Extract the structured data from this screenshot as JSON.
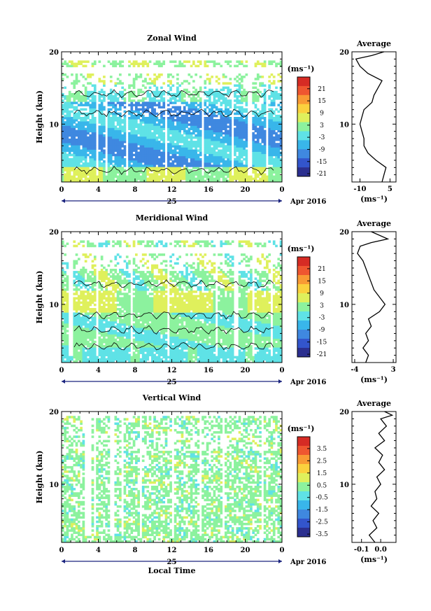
{
  "chart_data": [
    {
      "type": "heatmap",
      "title": "Zonal Wind",
      "ylabel": "Height (km)",
      "y_ticks": [
        "10",
        "20"
      ],
      "x_ticks": [
        "0",
        "4",
        "8",
        "12",
        "16",
        "20",
        "0"
      ],
      "date_day": "25",
      "date_label": "Apr 2016",
      "colorbar_unit": "(ms⁻¹)",
      "colorbar_ticks": [
        "21",
        "15",
        "9",
        "3",
        "-3",
        "-9",
        "-15",
        "-21"
      ],
      "zlim": [
        -24,
        24
      ],
      "xlim": [
        0,
        24
      ],
      "ylim": [
        2,
        20
      ],
      "profile_title": "Average",
      "profile_xticks": [
        "-10",
        "5"
      ],
      "profile_xlim": [
        -14,
        8
      ],
      "profile_xlabel": "(ms⁻¹)",
      "profile_yticks": [
        "10",
        "20"
      ],
      "profile": [
        [
          2,
          1
        ],
        [
          3,
          2
        ],
        [
          4,
          3
        ],
        [
          5,
          -2
        ],
        [
          6,
          -6
        ],
        [
          7,
          -8
        ],
        [
          8,
          -8
        ],
        [
          9,
          -9
        ],
        [
          10,
          -10
        ],
        [
          11,
          -9
        ],
        [
          12,
          -8
        ],
        [
          13,
          -4
        ],
        [
          14,
          -3
        ],
        [
          15,
          -1
        ],
        [
          16,
          1
        ],
        [
          17,
          -6
        ],
        [
          18,
          -10
        ],
        [
          19,
          -12
        ],
        [
          19.5,
          -4
        ],
        [
          20,
          2
        ]
      ]
    },
    {
      "type": "heatmap",
      "title": "Meridional Wind",
      "ylabel": "Height (km)",
      "y_ticks": [
        "10",
        "20"
      ],
      "x_ticks": [
        "0",
        "4",
        "8",
        "12",
        "16",
        "20",
        "0"
      ],
      "date_day": "25",
      "date_label": "Apr 2016",
      "colorbar_unit": "(ms⁻¹)",
      "colorbar_ticks": [
        "21",
        "15",
        "9",
        "3",
        "-3",
        "-9",
        "-15",
        "-21"
      ],
      "zlim": [
        -24,
        24
      ],
      "xlim": [
        0,
        24
      ],
      "ylim": [
        2,
        20
      ],
      "profile_title": "Average",
      "profile_xticks": [
        "-4",
        "3"
      ],
      "profile_xlim": [
        -4.5,
        3.5
      ],
      "profile_xlabel": "(ms⁻¹)",
      "profile_yticks": [
        "10",
        "20"
      ],
      "profile": [
        [
          2,
          -2
        ],
        [
          3,
          -1.5
        ],
        [
          4,
          -2.5
        ],
        [
          5,
          -1.5
        ],
        [
          6,
          -2
        ],
        [
          7,
          -1
        ],
        [
          8,
          -1.5
        ],
        [
          9,
          0.5
        ],
        [
          10,
          1.5
        ],
        [
          11,
          0.5
        ],
        [
          12,
          -0.5
        ],
        [
          13,
          -1
        ],
        [
          14,
          -1.5
        ],
        [
          15,
          -2
        ],
        [
          16,
          -2.5
        ],
        [
          17,
          -3.5
        ],
        [
          18,
          -3
        ],
        [
          18.5,
          -1
        ],
        [
          19,
          2
        ],
        [
          20,
          -1
        ]
      ]
    },
    {
      "type": "heatmap",
      "title": "Vertical Wind",
      "ylabel": "Height (km)",
      "xlabel": "Local Time",
      "y_ticks": [
        "10",
        "20"
      ],
      "x_ticks": [
        "0",
        "4",
        "8",
        "12",
        "16",
        "20",
        "0"
      ],
      "date_day": "25",
      "date_label": "Apr 2016",
      "colorbar_unit": "(ms⁻¹)",
      "colorbar_ticks": [
        "3.5",
        "2.5",
        "1.5",
        "0.5",
        "-0.5",
        "-1.5",
        "-2.5",
        "-3.5"
      ],
      "zlim": [
        -4,
        4
      ],
      "xlim": [
        0,
        24
      ],
      "ylim": [
        2,
        20
      ],
      "profile_title": "Average",
      "profile_xticks": [
        "-0.1",
        "0.0"
      ],
      "profile_xlim": [
        -0.15,
        0.08
      ],
      "profile_xlabel": "(ms⁻¹)",
      "profile_yticks": [
        "10",
        "20"
      ],
      "profile": [
        [
          2,
          -0.03
        ],
        [
          3,
          -0.06
        ],
        [
          4,
          -0.02
        ],
        [
          5,
          -0.04
        ],
        [
          6,
          -0.01
        ],
        [
          7,
          -0.05
        ],
        [
          8,
          -0.02
        ],
        [
          9,
          -0.03
        ],
        [
          10,
          0.0
        ],
        [
          11,
          -0.02
        ],
        [
          12,
          0.02
        ],
        [
          13,
          -0.01
        ],
        [
          14,
          0.01
        ],
        [
          15,
          -0.03
        ],
        [
          16,
          0.02
        ],
        [
          17,
          -0.01
        ],
        [
          18,
          0.03
        ],
        [
          19,
          0.0
        ],
        [
          19.5,
          0.06
        ],
        [
          20,
          0.02
        ]
      ]
    }
  ],
  "colorbar_colors": [
    "#2b2f8f",
    "#3355cc",
    "#3f88e0",
    "#39b6ea",
    "#5fe2e6",
    "#8cf29e",
    "#dff05c",
    "#fbd13e",
    "#f99a34",
    "#ef5630",
    "#d62b24"
  ]
}
